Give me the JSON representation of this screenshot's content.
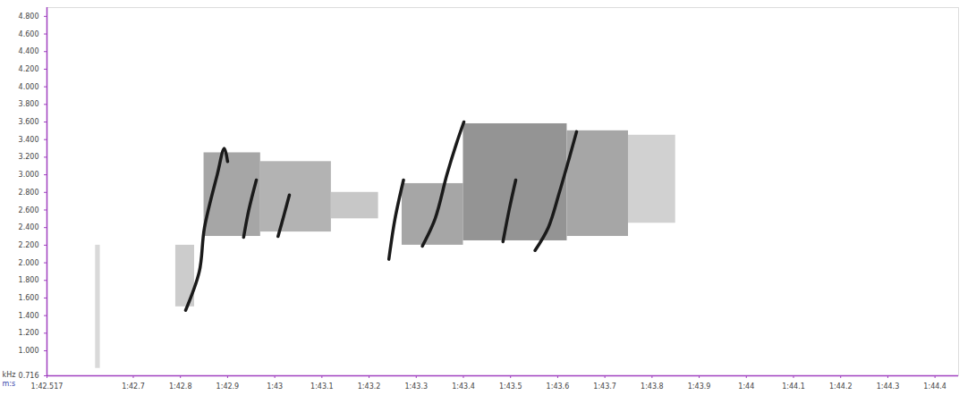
{
  "chart_data": {
    "type": "spectrogram",
    "xlabel": "m:s",
    "ylabel": "kHz",
    "xlim": [
      102.517,
      104.45
    ],
    "ylim": [
      0.716,
      4.9
    ],
    "xticks": [
      {
        "value": 102.517,
        "label": "1:42.517"
      },
      {
        "value": 102.7,
        "label": "1:42.7"
      },
      {
        "value": 102.8,
        "label": "1:42.8"
      },
      {
        "value": 102.9,
        "label": "1:42.9"
      },
      {
        "value": 103,
        "label": "1:43"
      },
      {
        "value": 103.1,
        "label": "1:43.1"
      },
      {
        "value": 103.2,
        "label": "1:43.2"
      },
      {
        "value": 103.3,
        "label": "1:43.3"
      },
      {
        "value": 103.4,
        "label": "1:43.4"
      },
      {
        "value": 103.5,
        "label": "1:43.5"
      },
      {
        "value": 103.6,
        "label": "1:43.6"
      },
      {
        "value": 103.7,
        "label": "1:43.7"
      },
      {
        "value": 103.8,
        "label": "1:43.8"
      },
      {
        "value": 103.9,
        "label": "1:43.9"
      },
      {
        "value": 104,
        "label": "1:44"
      },
      {
        "value": 104.1,
        "label": "1:44.1"
      },
      {
        "value": 104.2,
        "label": "1:44.2"
      },
      {
        "value": 104.3,
        "label": "1:44.3"
      },
      {
        "value": 104.4,
        "label": "1:44.4"
      }
    ],
    "yticks": [
      {
        "value": 4.8,
        "label": "4.800"
      },
      {
        "value": 4.6,
        "label": "4.600"
      },
      {
        "value": 4.4,
        "label": "4.400"
      },
      {
        "value": 4.2,
        "label": "4.200"
      },
      {
        "value": 4.0,
        "label": "4.000"
      },
      {
        "value": 3.8,
        "label": "3.800"
      },
      {
        "value": 3.6,
        "label": "3.600"
      },
      {
        "value": 3.4,
        "label": "3.400"
      },
      {
        "value": 3.2,
        "label": "3.200"
      },
      {
        "value": 3.0,
        "label": "3.000"
      },
      {
        "value": 2.8,
        "label": "2.800"
      },
      {
        "value": 2.6,
        "label": "2.600"
      },
      {
        "value": 2.4,
        "label": "2.400"
      },
      {
        "value": 2.2,
        "label": "2.200"
      },
      {
        "value": 2.0,
        "label": "2.000"
      },
      {
        "value": 1.8,
        "label": "1.800"
      },
      {
        "value": 1.6,
        "label": "1.600"
      },
      {
        "value": 1.4,
        "label": "1.400"
      },
      {
        "value": 1.2,
        "label": "1.200"
      },
      {
        "value": 1.0,
        "label": "1.000"
      },
      0.716
    ],
    "intensity_range": [
      0,
      1
    ],
    "regions": [
      {
        "t1": 102.62,
        "t2": 102.63,
        "f1": 0.8,
        "f2": 2.2,
        "value": 0.15
      },
      {
        "t1": 102.79,
        "t2": 102.83,
        "f1": 1.5,
        "f2": 2.2,
        "value": 0.2
      },
      {
        "t1": 102.85,
        "t2": 102.97,
        "f1": 2.3,
        "f2": 3.25,
        "value": 0.35
      },
      {
        "t1": 102.97,
        "t2": 103.12,
        "f1": 2.35,
        "f2": 3.15,
        "value": 0.3
      },
      {
        "t1": 103.12,
        "t2": 103.22,
        "f1": 2.5,
        "f2": 2.8,
        "value": 0.22
      },
      {
        "t1": 103.27,
        "t2": 103.4,
        "f1": 2.2,
        "f2": 2.9,
        "value": 0.35
      },
      {
        "t1": 103.4,
        "t2": 103.62,
        "f1": 2.25,
        "f2": 3.58,
        "value": 0.42
      },
      {
        "t1": 103.62,
        "t2": 103.75,
        "f1": 2.3,
        "f2": 3.5,
        "value": 0.35
      },
      {
        "t1": 103.75,
        "t2": 103.85,
        "f1": 2.45,
        "f2": 3.45,
        "value": 0.18
      }
    ],
    "series": [
      {
        "color": "#1a1a1a",
        "x": [
          102.811,
          102.84,
          102.851,
          102.878,
          102.893,
          102.9
        ],
        "values": [
          1.46,
          1.9,
          2.4,
          3.0,
          3.3,
          3.15
        ]
      },
      {
        "color": "#1a1a1a",
        "x": [
          102.934,
          102.945,
          102.961
        ],
        "values": [
          2.29,
          2.6,
          2.94
        ]
      },
      {
        "color": "#1a1a1a",
        "x": [
          103.007,
          103.02,
          103.031
        ],
        "values": [
          2.3,
          2.55,
          2.77
        ]
      },
      {
        "color": "#1a1a1a",
        "x": [
          103.242,
          103.255,
          103.273
        ],
        "values": [
          2.04,
          2.5,
          2.94
        ]
      },
      {
        "color": "#1a1a1a",
        "x": [
          103.313,
          103.34,
          103.365,
          103.385,
          103.401
        ],
        "values": [
          2.19,
          2.5,
          3.0,
          3.35,
          3.6
        ]
      },
      {
        "color": "#1a1a1a",
        "x": [
          103.484,
          103.497,
          103.511
        ],
        "values": [
          2.24,
          2.6,
          2.94
        ]
      },
      {
        "color": "#1a1a1a",
        "x": [
          103.552,
          103.58,
          103.603,
          103.625,
          103.64
        ],
        "values": [
          2.14,
          2.4,
          2.79,
          3.2,
          3.49
        ]
      }
    ]
  }
}
